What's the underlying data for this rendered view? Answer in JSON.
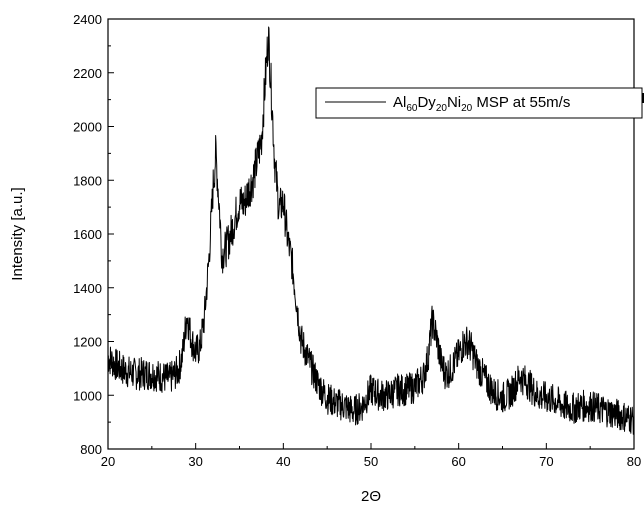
{
  "chart_data": {
    "type": "line",
    "xlabel": "2Θ",
    "ylabel": "Intensity [a.u.]",
    "xlim": [
      20,
      80
    ],
    "ylim": [
      800,
      2400
    ],
    "x_ticks": [
      20,
      30,
      40,
      50,
      60,
      70,
      80
    ],
    "y_ticks": [
      800,
      1000,
      1200,
      1400,
      1600,
      1800,
      2000,
      2200,
      2400
    ],
    "grid": false,
    "legend_position": "top-right",
    "legend": {
      "line_color": "#000000",
      "parts": [
        {
          "text": "Al",
          "sub": false
        },
        {
          "text": "60",
          "sub": true
        },
        {
          "text": "Dy",
          "sub": false
        },
        {
          "text": "20",
          "sub": true
        },
        {
          "text": "Ni",
          "sub": false
        },
        {
          "text": "20",
          "sub": true
        },
        {
          "text": " MSP at 55m/s",
          "sub": false
        }
      ]
    },
    "series": [
      {
        "name": "Al60Dy20Ni20 MSP at 55m/s",
        "color": "#000000",
        "x": [
          20,
          21,
          22,
          23,
          24,
          25,
          26,
          27,
          28,
          28.5,
          29,
          29.5,
          30,
          30.5,
          31,
          31.5,
          32,
          32.3,
          32.7,
          33,
          33.5,
          34,
          35,
          35.5,
          36,
          36.5,
          37,
          37.5,
          38,
          38.3,
          38.7,
          39,
          39.5,
          40,
          40.5,
          41,
          41.5,
          42,
          43,
          44,
          45,
          46,
          47,
          48,
          49,
          50,
          51,
          52,
          53,
          54,
          55,
          56,
          56.5,
          57,
          57.5,
          58,
          58.5,
          59,
          59.5,
          60,
          60.5,
          61,
          61.5,
          62,
          63,
          64,
          65,
          66,
          67,
          68,
          69,
          70,
          71,
          72,
          73,
          74,
          75,
          76,
          77,
          78,
          79,
          80
        ],
        "y": [
          1140,
          1110,
          1090,
          1080,
          1080,
          1080,
          1070,
          1060,
          1090,
          1150,
          1300,
          1210,
          1160,
          1180,
          1290,
          1500,
          1780,
          1900,
          1700,
          1520,
          1550,
          1600,
          1720,
          1710,
          1760,
          1800,
          1870,
          1950,
          2200,
          2340,
          2090,
          1880,
          1690,
          1720,
          1580,
          1490,
          1350,
          1210,
          1120,
          1040,
          990,
          970,
          960,
          940,
          960,
          1020,
          1000,
          1000,
          1020,
          1020,
          1030,
          1070,
          1140,
          1280,
          1210,
          1120,
          1080,
          1090,
          1120,
          1150,
          1190,
          1200,
          1170,
          1120,
          1060,
          1010,
          990,
          1010,
          1070,
          1040,
          1000,
          990,
          980,
          960,
          950,
          960,
          960,
          950,
          940,
          930,
          920,
          910
        ]
      }
    ]
  }
}
